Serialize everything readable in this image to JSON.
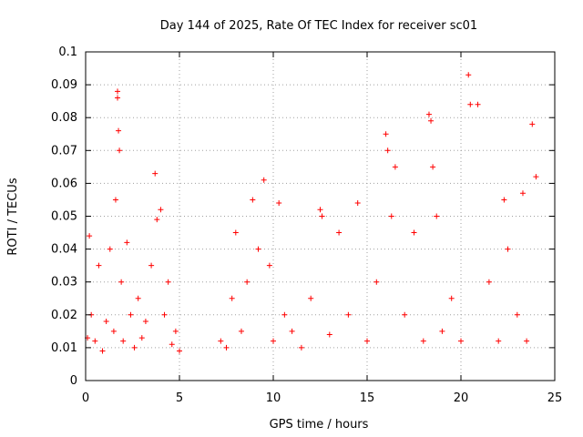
{
  "chart_data": {
    "type": "scatter",
    "title": "Day 144 of 2025, Rate Of TEC Index for receiver sc01",
    "xlabel": "GPS time / hours",
    "ylabel": "ROTI / TECUs",
    "xlim": [
      0,
      25
    ],
    "ylim": [
      0,
      0.1
    ],
    "x_ticks": [
      "0",
      "5",
      "10",
      "15",
      "20",
      "25"
    ],
    "y_ticks": [
      "0",
      "0.01",
      "0.02",
      "0.03",
      "0.04",
      "0.05",
      "0.06",
      "0.07",
      "0.08",
      "0.09",
      "0.1"
    ],
    "grid": true,
    "marker": "+",
    "color": "#ff0000",
    "series": [
      {
        "x": [
          0.1,
          0.2,
          0.3,
          0.5,
          0.7,
          0.9,
          1.1,
          1.3,
          1.5,
          1.6,
          1.7,
          1.7,
          1.75,
          1.8,
          1.9,
          2.0,
          2.2,
          2.4,
          2.6,
          2.8,
          3.0,
          3.2,
          3.5,
          3.7,
          3.8,
          4.0,
          4.2,
          4.4,
          4.6,
          4.8,
          5.0,
          7.2,
          7.5,
          7.8,
          8.0,
          8.3,
          8.6,
          8.9,
          9.2,
          9.5,
          9.8,
          10.0,
          10.3,
          10.6,
          11.0,
          11.5,
          12.0,
          12.5,
          12.6,
          13.0,
          13.5,
          14.0,
          14.5,
          15.0,
          15.5,
          16.0,
          16.1,
          16.3,
          16.5,
          17.0,
          17.5,
          18.0,
          18.3,
          18.4,
          18.5,
          18.7,
          19.0,
          19.5,
          20.0,
          20.4,
          20.5,
          20.9,
          21.5,
          22.0,
          22.3,
          22.5,
          23.0,
          23.3,
          23.5,
          23.8,
          24.0
        ],
        "y": [
          0.013,
          0.044,
          0.02,
          0.012,
          0.035,
          0.009,
          0.018,
          0.04,
          0.015,
          0.055,
          0.088,
          0.086,
          0.076,
          0.07,
          0.03,
          0.012,
          0.042,
          0.02,
          0.01,
          0.025,
          0.013,
          0.018,
          0.035,
          0.063,
          0.049,
          0.052,
          0.02,
          0.03,
          0.011,
          0.015,
          0.009,
          0.012,
          0.01,
          0.025,
          0.045,
          0.015,
          0.03,
          0.055,
          0.04,
          0.061,
          0.035,
          0.012,
          0.054,
          0.02,
          0.015,
          0.01,
          0.025,
          0.052,
          0.05,
          0.014,
          0.045,
          0.02,
          0.054,
          0.012,
          0.03,
          0.075,
          0.07,
          0.05,
          0.065,
          0.02,
          0.045,
          0.012,
          0.081,
          0.079,
          0.065,
          0.05,
          0.015,
          0.025,
          0.012,
          0.093,
          0.084,
          0.084,
          0.03,
          0.012,
          0.055,
          0.04,
          0.02,
          0.057,
          0.012,
          0.078,
          0.062
        ]
      }
    ]
  }
}
